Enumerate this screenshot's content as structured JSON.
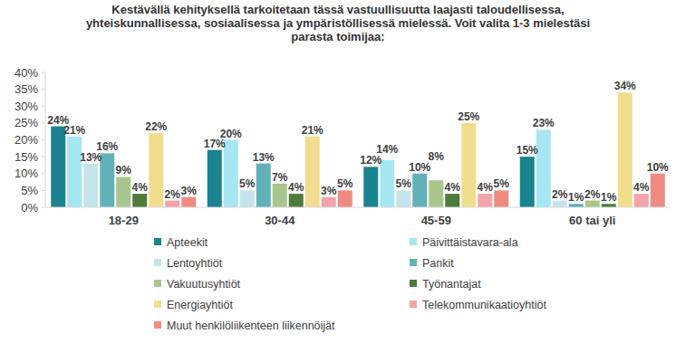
{
  "chart_data": {
    "type": "bar",
    "title": "Kestävällä kehityksellä tarkoitetaan tässä vastuullisuutta laajasti taloudellisessa, yhteiskunnallisessa, sosiaalisessa ja ympäristöllisessä mielessä. Voit valita 1-3 mielestäsi parasta toimijaa:",
    "categories": [
      "18-29",
      "30-44",
      "45-59",
      "60 tai yli"
    ],
    "series": [
      {
        "name": "Apteekit",
        "color": "#1b8290",
        "values": [
          24,
          17,
          12,
          15
        ],
        "value_labels": [
          "24%",
          "17%",
          "12%",
          "15%"
        ]
      },
      {
        "name": "Päivittäistavara-ala",
        "color": "#a6e6f3",
        "values": [
          21,
          20,
          14,
          23
        ],
        "value_labels": [
          "21%",
          "20%",
          "14%",
          "23%"
        ]
      },
      {
        "name": "Lentoyhtiöt",
        "color": "#c4e4ea",
        "values": [
          13,
          5,
          5,
          2
        ],
        "value_labels": [
          "13%",
          "5%",
          "5%",
          "2%"
        ]
      },
      {
        "name": "Pankit",
        "color": "#62b1b9",
        "values": [
          16,
          13,
          10,
          1
        ],
        "value_labels": [
          "16%",
          "13%",
          "10%",
          "1%"
        ]
      },
      {
        "name": "Vakuutusyhtiöt",
        "color": "#a8c68c",
        "values": [
          9,
          7,
          8,
          2
        ],
        "value_labels": [
          "9%",
          "7%",
          "8%",
          "2%"
        ]
      },
      {
        "name": "Työnantajat",
        "color": "#4d7b3b",
        "values": [
          4,
          4,
          4,
          1
        ],
        "value_labels": [
          "4%",
          "4%",
          "4%",
          "1%"
        ]
      },
      {
        "name": "Energiayhtiöt",
        "color": "#f1dd8e",
        "values": [
          22,
          21,
          25,
          34
        ],
        "value_labels": [
          "22%",
          "21%",
          "25%",
          "34%"
        ]
      },
      {
        "name": "Telekommunikaatioyhtiöt",
        "color": "#f4a3ab",
        "values": [
          2,
          3,
          4,
          4
        ],
        "value_labels": [
          "2%",
          "3%",
          "4%",
          "4%"
        ]
      },
      {
        "name": "Muut henkilöliikenteen liikennöijät",
        "color": "#f08b82",
        "values": [
          3,
          5,
          5,
          10
        ],
        "value_labels": [
          "3%",
          "5%",
          "5%",
          "10%"
        ]
      }
    ],
    "ylim": [
      0,
      40
    ],
    "yticks": [
      {
        "value": 0,
        "label": "0%"
      },
      {
        "value": 5,
        "label": "5%"
      },
      {
        "value": 10,
        "label": "10%"
      },
      {
        "value": 15,
        "label": "15%"
      },
      {
        "value": 20,
        "label": "20%"
      },
      {
        "value": 25,
        "label": "25%"
      },
      {
        "value": 30,
        "label": "30%"
      },
      {
        "value": 35,
        "label": "35%"
      },
      {
        "value": 40,
        "label": "40%"
      }
    ],
    "grid": false,
    "data_labels": true,
    "legend": "bottom"
  }
}
